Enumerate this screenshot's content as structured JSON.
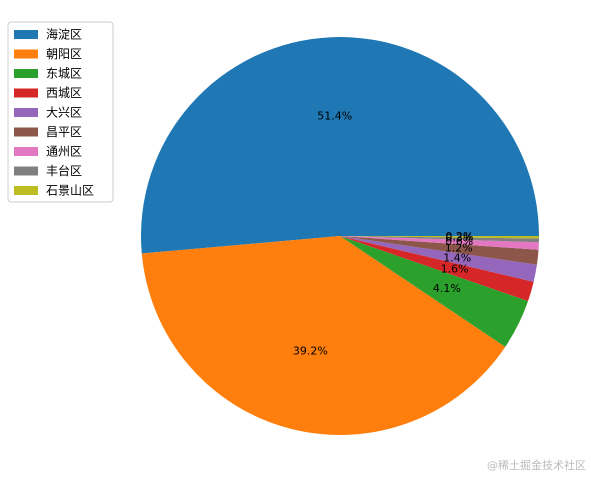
{
  "chart_data": {
    "type": "pie",
    "categories": [
      "海淀区",
      "朝阳区",
      "东城区",
      "西城区",
      "大兴区",
      "昌平区",
      "通州区",
      "丰台区",
      "石景山区"
    ],
    "values": [
      51.4,
      39.2,
      4.1,
      1.6,
      1.4,
      1.2,
      0.6,
      0.3,
      0.2
    ],
    "value_labels": [
      "51.4%",
      "39.2%",
      "4.1%",
      "1.6%",
      "1.4%",
      "1.2%",
      "0.6%",
      "0.3%",
      "0.2%"
    ],
    "colors": [
      "#1f77b4",
      "#ff7f0e",
      "#2ca02c",
      "#d62728",
      "#9467bd",
      "#8c564b",
      "#e377c2",
      "#7f7f7f",
      "#bcbd22"
    ],
    "legend": "upper left"
  },
  "watermark": "@稀土掘金技术社区"
}
